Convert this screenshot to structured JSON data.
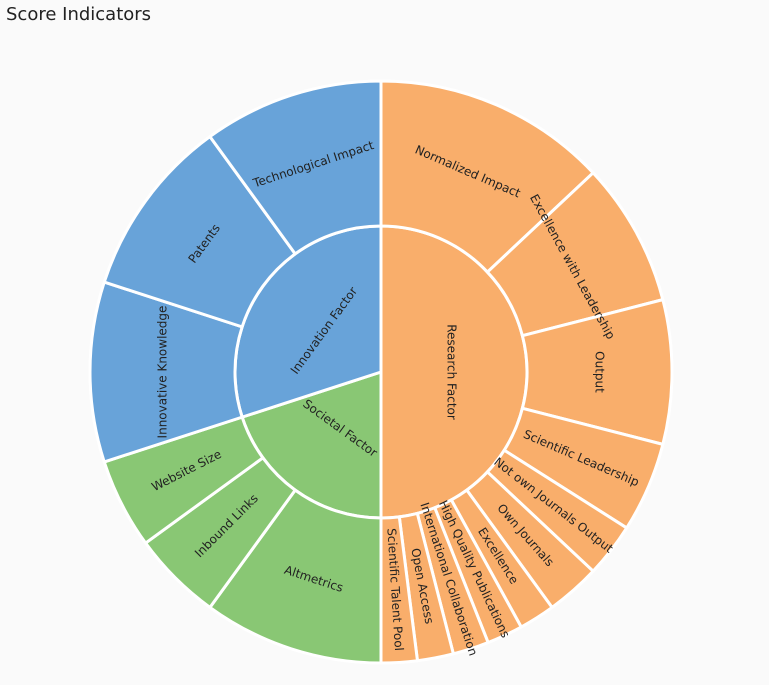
{
  "page_title": "Score Indicators",
  "chart_data": {
    "type": "sunburst",
    "title": "Score Indicators",
    "colors": {
      "Research Factor": "#f9ae6b",
      "Innovation Factor": "#68a3d9",
      "Societal Factor": "#89c774"
    },
    "factors": [
      {
        "name": "Research Factor",
        "value": 50,
        "children": [
          {
            "name": "Normalized Impact",
            "value": 13
          },
          {
            "name": "Excellence with Leadership",
            "value": 8
          },
          {
            "name": "Output",
            "value": 8
          },
          {
            "name": "Scientific Leadership",
            "value": 5
          },
          {
            "name": "Not own Journals Output",
            "value": 3
          },
          {
            "name": "Own Journals",
            "value": 3
          },
          {
            "name": "Excellence",
            "value": 2
          },
          {
            "name": "High Quality Publications",
            "value": 2
          },
          {
            "name": "International Collaboration",
            "value": 2
          },
          {
            "name": "Open Access",
            "value": 2
          },
          {
            "name": "Scientific Talent Pool",
            "value": 2
          }
        ]
      },
      {
        "name": "Societal Factor",
        "value": 20,
        "children": [
          {
            "name": "Altmetrics",
            "value": 10
          },
          {
            "name": "Inbound Links",
            "value": 5
          },
          {
            "name": "Website Size",
            "value": 5
          }
        ]
      },
      {
        "name": "Innovation Factor",
        "value": 30,
        "children": [
          {
            "name": "Innovative Knowledge",
            "value": 10
          },
          {
            "name": "Patents",
            "value": 10
          },
          {
            "name": "Technological Impact",
            "value": 10
          }
        ]
      }
    ]
  }
}
